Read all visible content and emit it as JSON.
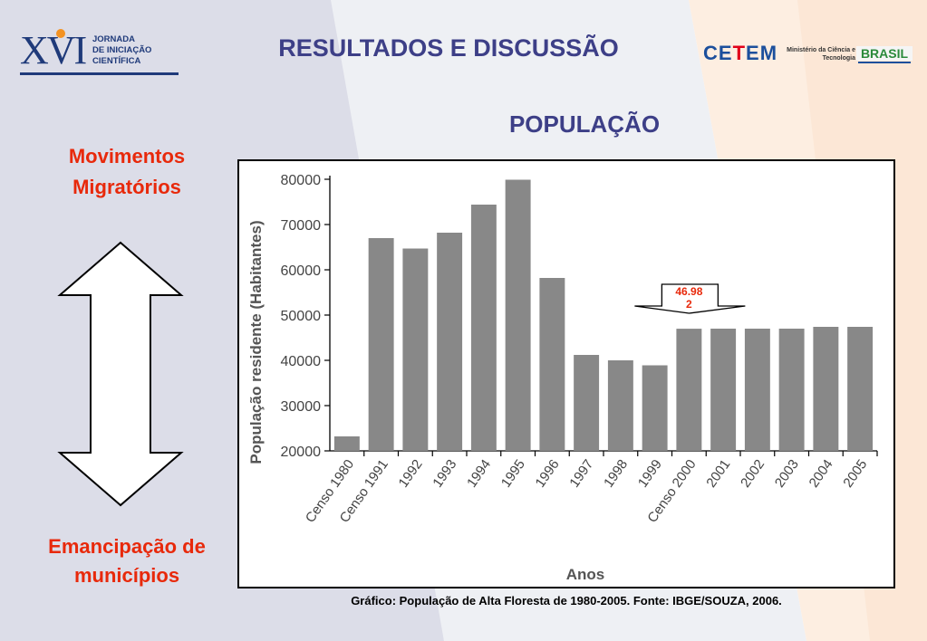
{
  "header": {
    "logo_xvi": "XVI",
    "logo_text": [
      "JORNADA",
      "DE INICIAÇÃO",
      "CIENTÍFICA"
    ],
    "title": "RESULTADOS E DISCUSSÃO",
    "cetem": "CETEM",
    "ministerio": "Ministério da Ciência e Tecnologia",
    "brasil": "BRASIL"
  },
  "subtitle": "POPULAÇÃO",
  "left_panel": {
    "top_line1": "Movimentos",
    "top_line2": "Migratórios",
    "bottom_line1": "Emancipação de",
    "bottom_line2": "municípios"
  },
  "caption": "Gráfico: População de Alta Floresta de 1980-2005. Fonte: IBGE/SOUZA, 2006.",
  "colors": {
    "accent_red": "#e8290b",
    "title_blue": "#3d3f87",
    "bar_gray": "#888888"
  },
  "chart_data": {
    "type": "bar",
    "title": "",
    "xlabel": "Anos",
    "ylabel": "População residente (Habitantes)",
    "ylim": [
      20000,
      80000
    ],
    "yticks": [
      20000,
      30000,
      40000,
      50000,
      60000,
      70000,
      80000
    ],
    "categories": [
      "Censo 1980",
      "Censo 1991",
      "1992",
      "1993",
      "1994",
      "1995",
      "1996",
      "1997",
      "1998",
      "1999",
      "Censo 2000",
      "2001",
      "2002",
      "2003",
      "2004",
      "2005"
    ],
    "values": [
      23200,
      67000,
      64700,
      68200,
      74400,
      79900,
      58200,
      41200,
      40000,
      38900,
      46982,
      47000,
      47000,
      47000,
      47400,
      47400
    ],
    "grid": false,
    "legend": "none",
    "annotation": {
      "text_line1": "46.98",
      "text_line2": "2",
      "category": "Censo 2000"
    }
  }
}
